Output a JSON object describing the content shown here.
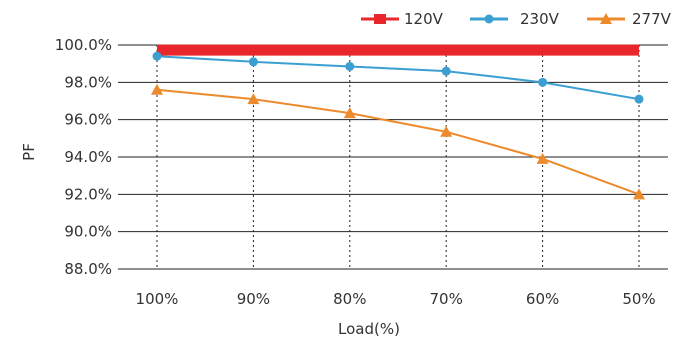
{
  "chart_data": {
    "type": "line",
    "xlabel": "Load(%)",
    "ylabel": "PF",
    "categories": [
      "100%",
      "90%",
      "80%",
      "70%",
      "60%",
      "50%"
    ],
    "yticks": [
      "88.0%",
      "90.0%",
      "92.0%",
      "94.0%",
      "96.0%",
      "98.0%",
      "100.0%"
    ],
    "ylim": [
      88,
      100
    ],
    "grid": "horizontal solid, vertical dotted at categories",
    "legend": "top-right",
    "series": [
      {
        "name": "120V",
        "values": [
          99.7,
          99.7,
          99.7,
          99.7,
          99.7,
          99.7
        ],
        "color": "#e8262c",
        "marker": "none",
        "style": "thick-band"
      },
      {
        "name": "230V",
        "values": [
          99.4,
          99.1,
          98.85,
          98.6,
          98.0,
          97.1
        ],
        "color": "#3b9fd1",
        "marker": "circle"
      },
      {
        "name": "277V",
        "values": [
          97.6,
          97.1,
          96.35,
          95.35,
          93.9,
          92.0
        ],
        "color": "#ec8a2c",
        "marker": "triangle"
      }
    ]
  }
}
